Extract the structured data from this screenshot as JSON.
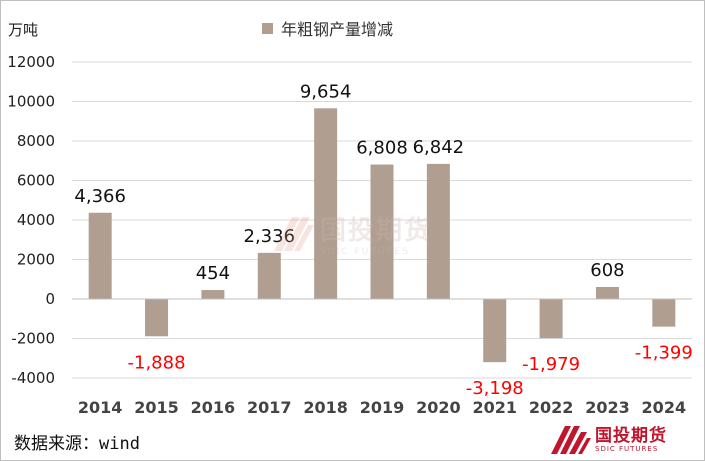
{
  "unit_label": "万吨",
  "source": "数据来源：wind",
  "watermark": {
    "cn": "国投期货",
    "en": "SDIC FUTURES"
  },
  "logo": {
    "cn": "国投期货",
    "en": "SDIC FUTURES"
  },
  "colors": {
    "bar": "#b09e91",
    "positive_label": "#111111",
    "negative_label": "#ff0000",
    "grid": "#d9d9d9",
    "brand": "#c0162d"
  },
  "chart_data": {
    "type": "bar",
    "categories": [
      "2014",
      "2015",
      "2016",
      "2017",
      "2018",
      "2019",
      "2020",
      "2021",
      "2022",
      "2023",
      "2024"
    ],
    "series": [
      {
        "name": "年粗钢产量增减",
        "values": [
          4366,
          -1888,
          454,
          2336,
          9654,
          6808,
          6842,
          -3198,
          -1979,
          608,
          -1399
        ],
        "labels": [
          "4,366",
          "-1,888",
          "454",
          "2,336",
          "9,654",
          "6,808",
          "6,842",
          "-3,198",
          "-1,979",
          "608",
          "-1,399"
        ]
      }
    ],
    "ylim": [
      -4000,
      12000
    ],
    "yticks": [
      -4000,
      -2000,
      0,
      2000,
      4000,
      6000,
      8000,
      10000,
      12000
    ],
    "ytick_labels": [
      "-4000",
      "-2000",
      "0",
      "2000",
      "4000",
      "6000",
      "8000",
      "10000",
      "12000"
    ],
    "grid": true,
    "legend_position": "top-center"
  }
}
